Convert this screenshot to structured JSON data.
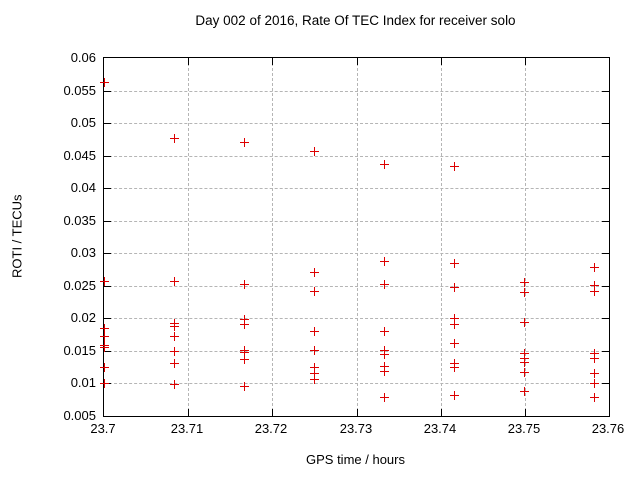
{
  "chart_data": {
    "type": "scatter",
    "title": "Day 002 of 2016, Rate Of TEC Index for receiver solo",
    "xlabel": "GPS time / hours",
    "ylabel": "ROTI / TECUs",
    "xlim": [
      23.7,
      23.76
    ],
    "ylim": [
      0.005,
      0.06
    ],
    "xticks": [
      23.7,
      23.71,
      23.72,
      23.73,
      23.74,
      23.75,
      23.76
    ],
    "xtick_labels": [
      "23.7",
      "23.71",
      "23.72",
      "23.73",
      "23.74",
      "23.75",
      "23.76"
    ],
    "yticks": [
      0.005,
      0.01,
      0.015,
      0.02,
      0.025,
      0.03,
      0.035,
      0.04,
      0.045,
      0.05,
      0.055,
      0.06
    ],
    "ytick_labels": [
      "0.005",
      "0.01",
      "0.015",
      "0.02",
      "0.025",
      "0.03",
      "0.035",
      "0.04",
      "0.045",
      "0.05",
      "0.055",
      "0.06"
    ],
    "grid": true,
    "legend": "none",
    "colors": {
      "marker": "#dd0000",
      "grid": "#b5b5b5",
      "axis": "#000000",
      "background": "#ffffff"
    },
    "marker": {
      "shape": "plus",
      "size": 9
    },
    "series": [
      {
        "name": "ROTI",
        "points": [
          [
            23.7,
            0.0562
          ],
          [
            23.7,
            0.0256
          ],
          [
            23.7,
            0.0184
          ],
          [
            23.7,
            0.0172
          ],
          [
            23.7,
            0.0158
          ],
          [
            23.7,
            0.0155
          ],
          [
            23.7,
            0.0124
          ],
          [
            23.7,
            0.01
          ],
          [
            23.70833,
            0.0476
          ],
          [
            23.70833,
            0.0257
          ],
          [
            23.70833,
            0.0192
          ],
          [
            23.70833,
            0.0187
          ],
          [
            23.70833,
            0.0172
          ],
          [
            23.70833,
            0.0149
          ],
          [
            23.70833,
            0.0131
          ],
          [
            23.70833,
            0.0099
          ],
          [
            23.71667,
            0.047
          ],
          [
            23.71667,
            0.0252
          ],
          [
            23.71667,
            0.0198
          ],
          [
            23.71667,
            0.019
          ],
          [
            23.71667,
            0.0151
          ],
          [
            23.71667,
            0.0148
          ],
          [
            23.71667,
            0.0137
          ],
          [
            23.71667,
            0.0096
          ],
          [
            23.725,
            0.0457
          ],
          [
            23.725,
            0.027
          ],
          [
            23.725,
            0.0241
          ],
          [
            23.725,
            0.018
          ],
          [
            23.725,
            0.0151
          ],
          [
            23.725,
            0.0124
          ],
          [
            23.725,
            0.0115
          ],
          [
            23.725,
            0.0106
          ],
          [
            23.73333,
            0.0437
          ],
          [
            23.73333,
            0.0288
          ],
          [
            23.73333,
            0.0252
          ],
          [
            23.73333,
            0.018
          ],
          [
            23.73333,
            0.015
          ],
          [
            23.73333,
            0.0144
          ],
          [
            23.73333,
            0.0126
          ],
          [
            23.73333,
            0.0118
          ],
          [
            23.73333,
            0.0078
          ],
          [
            23.74167,
            0.0434
          ],
          [
            23.74167,
            0.0284
          ],
          [
            23.74167,
            0.0248
          ],
          [
            23.74167,
            0.02
          ],
          [
            23.74167,
            0.019
          ],
          [
            23.74167,
            0.0161
          ],
          [
            23.74167,
            0.0131
          ],
          [
            23.74167,
            0.0124
          ],
          [
            23.74167,
            0.0082
          ],
          [
            23.75,
            0.0255
          ],
          [
            23.75,
            0.024
          ],
          [
            23.75,
            0.0194
          ],
          [
            23.75,
            0.0146
          ],
          [
            23.75,
            0.0139
          ],
          [
            23.75,
            0.0132
          ],
          [
            23.75,
            0.0117
          ],
          [
            23.75,
            0.0088
          ],
          [
            23.75833,
            0.0278
          ],
          [
            23.75833,
            0.0251
          ],
          [
            23.75833,
            0.0241
          ],
          [
            23.75833,
            0.0146
          ],
          [
            23.75833,
            0.0139
          ],
          [
            23.75833,
            0.0116
          ],
          [
            23.75833,
            0.01
          ],
          [
            23.75833,
            0.0078
          ]
        ]
      }
    ]
  }
}
